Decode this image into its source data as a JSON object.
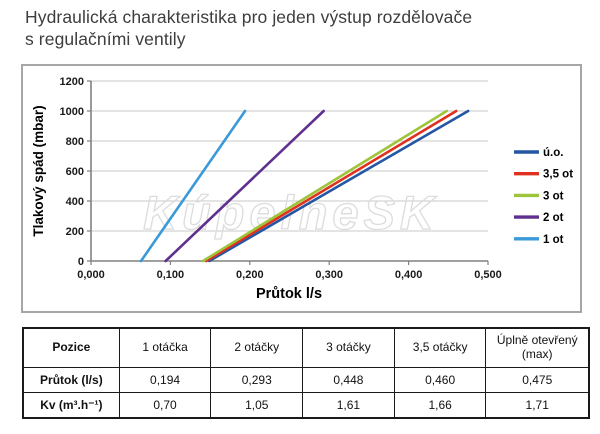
{
  "page": {
    "title_line1": "Hydraulická charakteristika pro jeden výstup rozdělovače",
    "title_line2": "s regulačními ventily"
  },
  "chart_data": {
    "type": "line",
    "title": "",
    "xlabel": "Průtok l/s",
    "ylabel": "Tlakový spád (mbar)",
    "xlim": [
      0,
      0.5
    ],
    "ylim": [
      0,
      1200
    ],
    "x_tick_labels": [
      "0,000",
      "0,100",
      "0,200",
      "0,300",
      "0,400",
      "0,500"
    ],
    "x_tick_values": [
      0,
      0.1,
      0.2,
      0.3,
      0.4,
      0.5
    ],
    "y_tick_labels": [
      "0",
      "200",
      "400",
      "600",
      "800",
      "1000",
      "1200"
    ],
    "y_tick_values": [
      0,
      200,
      400,
      600,
      800,
      1000,
      1200
    ],
    "grid": true,
    "legend_position": "right",
    "watermark": "KúpelneSK",
    "axis_color": "#808080",
    "grid_color": "#c9c9c9",
    "series": [
      {
        "name": "ú.o.",
        "color": "#2456a4",
        "points": [
          [
            0.149,
            0
          ],
          [
            0.475,
            1000
          ]
        ]
      },
      {
        "name": "3,5 ot",
        "color": "#e0301e",
        "points": [
          [
            0.145,
            0
          ],
          [
            0.46,
            1000
          ]
        ]
      },
      {
        "name": "3 ot",
        "color": "#9dc43b",
        "points": [
          [
            0.141,
            0
          ],
          [
            0.448,
            1000
          ]
        ]
      },
      {
        "name": "2 ot",
        "color": "#5f308f",
        "points": [
          [
            0.094,
            0
          ],
          [
            0.293,
            1000
          ]
        ]
      },
      {
        "name": "1 ot",
        "color": "#3a9ad9",
        "points": [
          [
            0.063,
            0
          ],
          [
            0.194,
            1000
          ]
        ]
      }
    ]
  },
  "table": {
    "headers": [
      "Pozice",
      "1 otáčka",
      "2 otáčky",
      "3 otáčky",
      "3,5 otáčky",
      "Úplně otevřený (max)"
    ],
    "rows": [
      {
        "label": "Průtok (l/s)",
        "values": [
          "0,194",
          "0,293",
          "0,448",
          "0,460",
          "0,475"
        ]
      },
      {
        "label": "Kv (m³.h⁻¹)",
        "values": [
          "0,70",
          "1,05",
          "1,61",
          "1,66",
          "1,71"
        ]
      }
    ]
  }
}
